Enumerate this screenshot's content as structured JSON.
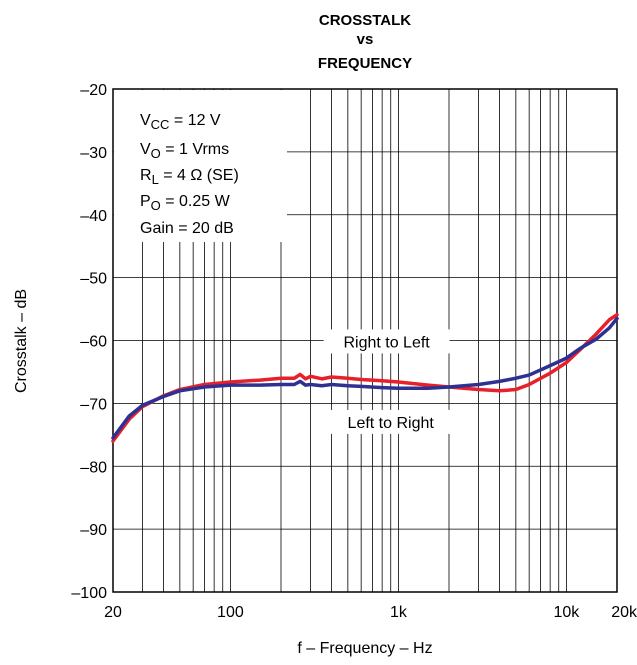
{
  "chart_data": {
    "type": "line",
    "title": [
      "CROSSTALK",
      "vs",
      "FREQUENCY"
    ],
    "xlabel": "f – Frequency – Hz",
    "ylabel": "Crosstalk – dB",
    "x_scale": "log",
    "xlim": [
      20,
      20000
    ],
    "ylim": [
      -100,
      -20
    ],
    "grid": true,
    "x_tick_labels": [
      {
        "value": 20,
        "label": "20"
      },
      {
        "value": 100,
        "label": "100"
      },
      {
        "value": 1000,
        "label": "1k"
      },
      {
        "value": 10000,
        "label": "10k"
      },
      {
        "value": 20000,
        "label": "20k"
      }
    ],
    "y_ticks": [
      -20,
      -30,
      -40,
      -50,
      -60,
      -70,
      -80,
      -90,
      -100
    ],
    "y_tick_labels": [
      "–20",
      "–30",
      "–40",
      "–50",
      "–60",
      "–70",
      "–80",
      "–90",
      "–100"
    ],
    "conditions": [
      {
        "main": "V",
        "sub": "CC",
        "rest": " = 12 V"
      },
      {
        "main": "V",
        "sub": "O",
        "rest": " = 1 Vrms"
      },
      {
        "main": "R",
        "sub": "L",
        "rest": " = 4 Ω (SE)"
      },
      {
        "main": "P",
        "sub": "O",
        "rest": " = 0.25 W"
      },
      {
        "main": "Gain = 20 dB",
        "sub": "",
        "rest": ""
      }
    ],
    "series_colors": [
      "#e8202a",
      "#2e3192"
    ],
    "annotations": [
      {
        "text": "Right to Left",
        "x": 850,
        "y": -60.3
      },
      {
        "text": "Left to Right",
        "x": 900,
        "y": -73.1
      }
    ],
    "series": [
      {
        "name": "Right to Left",
        "x": [
          20,
          25,
          30,
          40,
          50,
          70,
          100,
          150,
          200,
          240,
          260,
          280,
          300,
          350,
          400,
          500,
          600,
          800,
          1000,
          1500,
          2000,
          3000,
          4000,
          5000,
          6000,
          8000,
          10000,
          12000,
          15000,
          18000,
          20000
        ],
        "y": [
          -76,
          -72.5,
          -70.5,
          -68.8,
          -67.8,
          -67.0,
          -66.6,
          -66.3,
          -66.0,
          -66.0,
          -65.4,
          -66.1,
          -65.7,
          -66.1,
          -65.8,
          -66.0,
          -66.2,
          -66.4,
          -66.6,
          -67.1,
          -67.4,
          -67.8,
          -68.0,
          -67.8,
          -67.0,
          -65.2,
          -63.5,
          -61.5,
          -59.0,
          -56.7,
          -55.9
        ]
      },
      {
        "name": "Left to Right",
        "x": [
          20,
          25,
          30,
          40,
          50,
          70,
          100,
          150,
          200,
          240,
          260,
          280,
          300,
          350,
          400,
          500,
          600,
          800,
          1000,
          1500,
          2000,
          3000,
          4000,
          5000,
          6000,
          8000,
          10000,
          12000,
          15000,
          18000,
          20000
        ],
        "y": [
          -75.5,
          -72.0,
          -70.3,
          -68.9,
          -68.0,
          -67.4,
          -67.1,
          -67.1,
          -67.0,
          -67.0,
          -66.5,
          -67.1,
          -67.0,
          -67.2,
          -67.0,
          -67.2,
          -67.3,
          -67.5,
          -67.6,
          -67.6,
          -67.4,
          -67.0,
          -66.5,
          -66.0,
          -65.5,
          -64.0,
          -62.8,
          -61.3,
          -59.8,
          -58.0,
          -56.5
        ]
      }
    ]
  }
}
